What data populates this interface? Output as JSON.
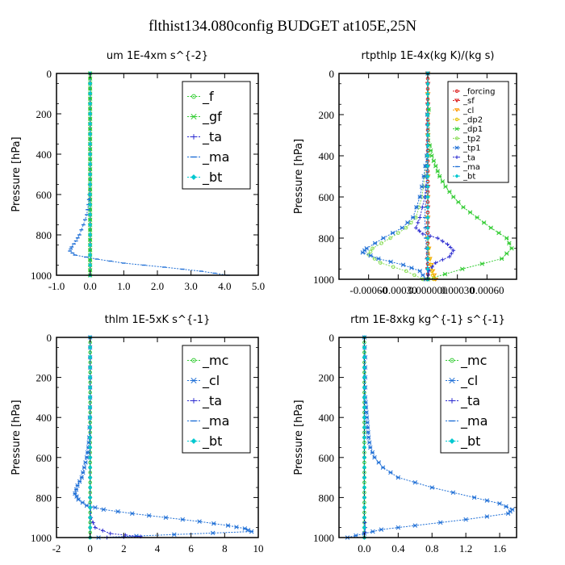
{
  "suptitle": "flthist134.080config  BUDGET at105E,25N",
  "colors": {
    "green": "#33cc33",
    "blue": "#1f6fd6",
    "navy": "#2a2ad0",
    "red": "#dd2222",
    "orange": "#ff9900",
    "yellow": "#e6c200",
    "cyan": "#00c8d0",
    "lightgreen": "#88dd55"
  },
  "chart_data": [
    {
      "type": "line",
      "title": "um  1E-4xm s^{-2}",
      "ylabel": "Pressure [hPa]",
      "xlim": [
        -1.0,
        5.0
      ],
      "ylim": [
        1000,
        0
      ],
      "xticks": [
        -1.0,
        0.0,
        1.0,
        2.0,
        3.0,
        4.0,
        5.0
      ],
      "xtick_labels": [
        "-1.0",
        "0.0",
        "1.0",
        "2.0",
        "3.0",
        "4.0",
        "5.0"
      ],
      "yticks": [
        0,
        200,
        400,
        600,
        800,
        1000
      ],
      "ytick_labels": [
        "0",
        "200",
        "400",
        "600",
        "800",
        "1000"
      ],
      "legend_position": "top-right",
      "legend_font": 16,
      "series": [
        {
          "name": "_f",
          "color": "green",
          "marker": "circle",
          "y": [
            0,
            50,
            100,
            150,
            200,
            250,
            300,
            350,
            400,
            450,
            500,
            550,
            600,
            650,
            700,
            750,
            800,
            850,
            900,
            950,
            1000
          ],
          "x": [
            0,
            0,
            0,
            0,
            0,
            0,
            0,
            0,
            0,
            0,
            0,
            0,
            0,
            0,
            0,
            0,
            0,
            0,
            0,
            0,
            0
          ]
        },
        {
          "name": "_gf",
          "color": "green",
          "marker": "x",
          "y": [
            0,
            50,
            100,
            150,
            200,
            250,
            300,
            350,
            400,
            450,
            500,
            550,
            600,
            650,
            700,
            750,
            800,
            850,
            900,
            950,
            1000
          ],
          "x": [
            0,
            0,
            0,
            0,
            0,
            0,
            0,
            0,
            0,
            0,
            0,
            0,
            0,
            0,
            0,
            0,
            0,
            0,
            0,
            0,
            0
          ]
        },
        {
          "name": "_ta",
          "color": "navy",
          "marker": "plus",
          "y": [
            0,
            100,
            200,
            300,
            400,
            500,
            600,
            700,
            800,
            900,
            1000
          ],
          "x": [
            0,
            0,
            0,
            0,
            0,
            0,
            0,
            0,
            0,
            0,
            0
          ]
        },
        {
          "name": "_ma",
          "color": "blue",
          "marker": "dash",
          "y": [
            0,
            100,
            200,
            300,
            400,
            500,
            600,
            650,
            700,
            750,
            800,
            830,
            860,
            880,
            900,
            920,
            940,
            960,
            980,
            1000
          ],
          "x": [
            0,
            0,
            0,
            0,
            0,
            0,
            -0.02,
            -0.05,
            -0.1,
            -0.2,
            -0.32,
            -0.42,
            -0.55,
            -0.6,
            -0.45,
            0.2,
            1.0,
            2.2,
            3.3,
            4.1
          ]
        },
        {
          "name": "_bt",
          "color": "cyan",
          "marker": "diamond",
          "y": [
            0,
            100,
            200,
            300,
            400,
            500,
            600,
            700,
            800,
            900,
            1000
          ],
          "x": [
            0,
            0,
            0,
            0,
            0,
            0,
            0,
            0,
            0,
            0,
            0
          ]
        }
      ]
    },
    {
      "type": "line",
      "title": "rtpthlp  1E-4x(kg K)/(kg s)",
      "ylabel": "Pressure [hPa]",
      "xlim": [
        -0.0009,
        0.0009
      ],
      "ylim": [
        1000,
        0
      ],
      "xticks": [
        -0.0006,
        -0.0003,
        0.0,
        0.0003,
        0.0006
      ],
      "xtick_labels": [
        "-0.00060",
        "-0.00030",
        "0.000000",
        "0.00030",
        "0.00060"
      ],
      "yticks": [
        0,
        200,
        400,
        600,
        800,
        1000
      ],
      "ytick_labels": [
        "0",
        "200",
        "400",
        "600",
        "800",
        "1000"
      ],
      "legend_position": "top-right",
      "legend_font": 10,
      "series": [
        {
          "name": "_forcing",
          "color": "red",
          "marker": "circle",
          "y": [
            0,
            50,
            100,
            150,
            200,
            250,
            300,
            350,
            400,
            450,
            500,
            550,
            600,
            650,
            700,
            750,
            800,
            850,
            900,
            950,
            1000
          ],
          "x": [
            0,
            0,
            0,
            0,
            0,
            0,
            0,
            0,
            0,
            0,
            0,
            0,
            0,
            0,
            0,
            0,
            0,
            0,
            0,
            0,
            0
          ]
        },
        {
          "name": "_sf",
          "color": "red",
          "marker": "triangle",
          "y": [
            0,
            100,
            200,
            300,
            400,
            500,
            600,
            700,
            800,
            900,
            1000
          ],
          "x": [
            0,
            0,
            0,
            0,
            0,
            0,
            0,
            0,
            0,
            0,
            0
          ]
        },
        {
          "name": "_cl",
          "color": "orange",
          "marker": "triangle",
          "y": [
            0,
            200,
            400,
            600,
            800,
            900,
            960,
            1000
          ],
          "x": [
            0,
            0,
            0,
            0,
            0,
            2e-05,
            5e-05,
            8e-05
          ]
        },
        {
          "name": "_dp2",
          "color": "yellow",
          "marker": "circle",
          "y": [
            0,
            200,
            400,
            600,
            800,
            900,
            960,
            1000
          ],
          "x": [
            0,
            0,
            0,
            0,
            0,
            2e-05,
            4e-05,
            6e-05
          ]
        },
        {
          "name": "_dp1",
          "color": "green",
          "marker": "x",
          "y": [
            0,
            350,
            400,
            450,
            500,
            550,
            600,
            650,
            700,
            750,
            800,
            850,
            900,
            950,
            1000
          ],
          "x": [
            0,
            2e-05,
            4e-05,
            8e-05,
            0.00012,
            0.00018,
            0.00026,
            0.00036,
            0.0005,
            0.00064,
            0.0008,
            0.00085,
            0.00075,
            0.00035,
            0.0
          ]
        },
        {
          "name": "_tp2",
          "color": "lightgreen",
          "marker": "circle",
          "y": [
            0,
            400,
            500,
            600,
            700,
            750,
            800,
            850,
            880,
            920,
            960,
            1000
          ],
          "x": [
            0,
            -1e-05,
            -3e-05,
            -6e-05,
            -0.00012,
            -0.00022,
            -0.00038,
            -0.00056,
            -0.0006,
            -0.00048,
            -0.00022,
            -5e-05
          ]
        },
        {
          "name": "_tp1",
          "color": "blue",
          "marker": "x",
          "y": [
            0,
            400,
            500,
            600,
            700,
            750,
            800,
            850,
            870,
            900,
            930,
            960,
            1000
          ],
          "x": [
            0,
            -1e-05,
            -4e-05,
            -8e-05,
            -0.00015,
            -0.00026,
            -0.00045,
            -0.00062,
            -0.00066,
            -0.0005,
            -0.00025,
            -8e-05,
            -2e-05
          ]
        },
        {
          "name": "_ta",
          "color": "navy",
          "marker": "plus",
          "y": [
            0,
            500,
            600,
            700,
            750,
            780,
            800,
            830,
            860,
            890,
            920,
            960,
            1000
          ],
          "x": [
            0,
            -1e-05,
            -3e-05,
            -8e-05,
            -0.00012,
            -5e-05,
            0.0001,
            0.0002,
            0.00026,
            0.00022,
            8e-05,
            1e-05,
            0
          ]
        },
        {
          "name": "_ma",
          "color": "blue",
          "marker": "dash",
          "y": [
            0,
            500,
            600,
            700,
            800,
            900,
            1000
          ],
          "x": [
            0,
            -1e-05,
            -2e-05,
            -3e-05,
            -2e-05,
            -1e-05,
            0
          ]
        },
        {
          "name": "_bt",
          "color": "cyan",
          "marker": "diamond",
          "y": [
            0,
            100,
            200,
            300,
            400,
            500,
            600,
            700,
            800,
            900,
            1000
          ],
          "x": [
            0,
            0,
            0,
            0,
            0,
            0,
            0,
            0,
            0,
            0,
            0
          ]
        }
      ]
    },
    {
      "type": "line",
      "title": "thlm  1E-5xK s^{-1}",
      "ylabel": "Pressure [hPa]",
      "xlim": [
        -2,
        10
      ],
      "ylim": [
        1000,
        0
      ],
      "xticks": [
        -2,
        0,
        2,
        4,
        6,
        8,
        10
      ],
      "xtick_labels": [
        "-2",
        "0",
        "2",
        "4",
        "6",
        "8",
        "10"
      ],
      "yticks": [
        0,
        200,
        400,
        600,
        800,
        1000
      ],
      "ytick_labels": [
        "0",
        "200",
        "400",
        "600",
        "800",
        "1000"
      ],
      "legend_position": "top-right",
      "legend_font": 16,
      "series": [
        {
          "name": "_mc",
          "color": "green",
          "marker": "circle",
          "y": [
            0,
            50,
            100,
            150,
            200,
            250,
            300,
            350,
            400,
            450,
            500,
            550,
            600,
            650,
            700,
            750,
            800,
            850,
            900,
            950,
            1000
          ],
          "x": [
            0,
            0,
            0,
            0,
            0,
            0,
            0,
            0,
            0,
            0,
            0,
            0,
            0,
            0,
            0,
            0,
            0,
            0,
            0,
            0,
            0
          ]
        },
        {
          "name": "_cl",
          "color": "blue",
          "marker": "x",
          "y": [
            0,
            100,
            200,
            300,
            400,
            500,
            550,
            600,
            650,
            700,
            740,
            780,
            810,
            840,
            860,
            880,
            900,
            920,
            940,
            955,
            970,
            985,
            1000
          ],
          "x": [
            0,
            0,
            0,
            0,
            -0.02,
            -0.05,
            -0.1,
            -0.2,
            -0.35,
            -0.5,
            -0.75,
            -0.9,
            -0.7,
            -0.2,
            0.8,
            2.5,
            4.5,
            6.5,
            8.2,
            9.2,
            9.6,
            5.0,
            0.5
          ]
        },
        {
          "name": "_ta",
          "color": "navy",
          "marker": "plus",
          "y": [
            0,
            200,
            400,
            600,
            800,
            900,
            950,
            980,
            995,
            1000
          ],
          "x": [
            0,
            0,
            0,
            0,
            0,
            0.05,
            0.3,
            1.2,
            3.0,
            1.0
          ]
        },
        {
          "name": "_ma",
          "color": "blue",
          "marker": "dash",
          "y": [
            0,
            200,
            400,
            600,
            800,
            1000
          ],
          "x": [
            0,
            0,
            0,
            0,
            0,
            0
          ]
        },
        {
          "name": "_bt",
          "color": "cyan",
          "marker": "diamond",
          "y": [
            0,
            100,
            200,
            300,
            400,
            500,
            600,
            700,
            800,
            900,
            1000
          ],
          "x": [
            0,
            0,
            0,
            0,
            0,
            0,
            0,
            0,
            0,
            0,
            0
          ]
        }
      ]
    },
    {
      "type": "line",
      "title": "rtm  1E-8xkg kg^{-1} s^{-1}",
      "ylabel": "Pressure [hPa]",
      "xlim": [
        -0.3,
        1.8
      ],
      "ylim": [
        1000,
        0
      ],
      "xticks": [
        0.0,
        0.4,
        0.8,
        1.2,
        1.6
      ],
      "xtick_labels": [
        "0.0",
        "0.4",
        "0.8",
        "1.2",
        "1.6"
      ],
      "yticks": [
        0,
        200,
        400,
        600,
        800,
        1000
      ],
      "ytick_labels": [
        "0",
        "200",
        "400",
        "600",
        "800",
        "1000"
      ],
      "legend_position": "top-right",
      "legend_font": 16,
      "series": [
        {
          "name": "_mc",
          "color": "green",
          "marker": "circle",
          "y": [
            0,
            50,
            100,
            150,
            200,
            250,
            300,
            350,
            400,
            450,
            500,
            550,
            600,
            650,
            700,
            750,
            800,
            850,
            900,
            950,
            1000
          ],
          "x": [
            0,
            0,
            0,
            0,
            0,
            0,
            0,
            0,
            0,
            0,
            0,
            0,
            0,
            0,
            0,
            0,
            0,
            0,
            0,
            0,
            0
          ]
        },
        {
          "name": "_cl",
          "color": "blue",
          "marker": "x",
          "y": [
            0,
            100,
            200,
            300,
            350,
            400,
            450,
            500,
            550,
            600,
            650,
            700,
            750,
            800,
            830,
            860,
            880,
            910,
            940,
            960,
            980,
            1000
          ],
          "x": [
            0,
            0.01,
            0.01,
            0.01,
            0.02,
            0.03,
            0.04,
            0.05,
            0.07,
            0.12,
            0.22,
            0.4,
            0.8,
            1.3,
            1.6,
            1.75,
            1.7,
            1.2,
            0.6,
            0.2,
            0.0,
            -0.2
          ]
        },
        {
          "name": "_ta",
          "color": "navy",
          "marker": "plus",
          "y": [
            0,
            200,
            400,
            600,
            800,
            900,
            950,
            1000
          ],
          "x": [
            0,
            0,
            0,
            0,
            0,
            0,
            0.01,
            0.0
          ]
        },
        {
          "name": "_ma",
          "color": "blue",
          "marker": "dash",
          "y": [
            0,
            200,
            400,
            600,
            800,
            1000
          ],
          "x": [
            0,
            0,
            0,
            0,
            0,
            0
          ]
        },
        {
          "name": "_bt",
          "color": "cyan",
          "marker": "diamond",
          "y": [
            0,
            100,
            200,
            300,
            400,
            500,
            600,
            700,
            800,
            900,
            1000
          ],
          "x": [
            0,
            0,
            0,
            0,
            0,
            0,
            0,
            0,
            0,
            0,
            0
          ]
        }
      ]
    }
  ]
}
